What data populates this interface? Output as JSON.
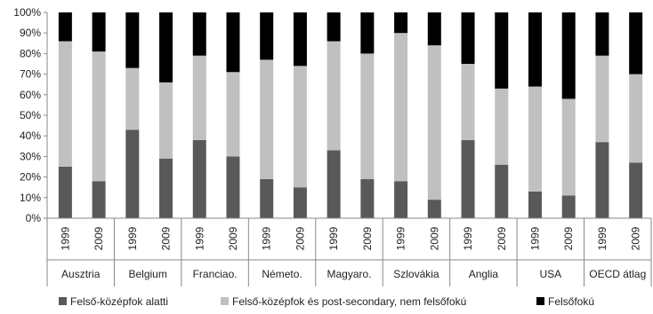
{
  "chart_data": {
    "type": "bar",
    "stacked": true,
    "orientation": "vertical",
    "y_axis": {
      "min": 0,
      "max": 100,
      "step": 10,
      "tick_labels": [
        "0%",
        "10%",
        "20%",
        "30%",
        "40%",
        "50%",
        "60%",
        "70%",
        "80%",
        "90%",
        "100%"
      ]
    },
    "grid": false,
    "legend_position": "bottom",
    "groups": [
      {
        "label": "Ausztria",
        "years": [
          "1999",
          "2009"
        ]
      },
      {
        "label": "Belgium",
        "years": [
          "1999",
          "2009"
        ]
      },
      {
        "label": "Franciao.",
        "years": [
          "1999",
          "2009"
        ]
      },
      {
        "label": "Németo.",
        "years": [
          "1999",
          "2009"
        ]
      },
      {
        "label": "Magyaro.",
        "years": [
          "1999",
          "2009"
        ]
      },
      {
        "label": "Szlovákia",
        "years": [
          "1999",
          "2009"
        ]
      },
      {
        "label": "Anglia",
        "years": [
          "1999",
          "2009"
        ]
      },
      {
        "label": "USA",
        "years": [
          "1999",
          "2009"
        ]
      },
      {
        "label": "OECD átlag",
        "years": [
          "1999",
          "2009"
        ]
      }
    ],
    "series": [
      {
        "name": "Felső-középfok alatti",
        "color": "#595959",
        "values": [
          25,
          18,
          43,
          29,
          38,
          30,
          19,
          15,
          33,
          19,
          18,
          9,
          38,
          26,
          13,
          11,
          37,
          27
        ]
      },
      {
        "name": "Felső-középfok és post-secondary, nem felsőfokú",
        "color": "#c0c0c0",
        "values": [
          61,
          63,
          30,
          37,
          41,
          41,
          58,
          59,
          53,
          61,
          72,
          75,
          37,
          37,
          51,
          47,
          42,
          43
        ]
      },
      {
        "name": "Felsőfokú",
        "color": "#000000",
        "values": [
          14,
          19,
          27,
          34,
          21,
          29,
          23,
          26,
          14,
          20,
          10,
          16,
          25,
          37,
          36,
          42,
          21,
          30
        ]
      }
    ]
  }
}
